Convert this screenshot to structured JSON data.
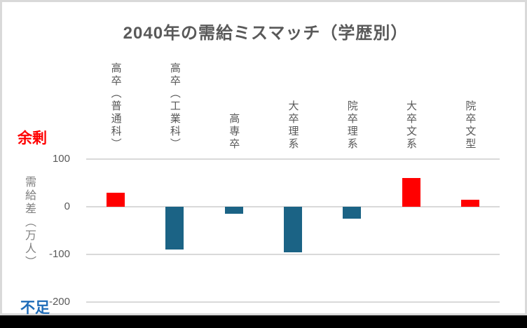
{
  "page": {
    "background_color": "#000000",
    "card_background": "#ffffff",
    "card_border_color": "#d9d9d9"
  },
  "chart_data": {
    "type": "bar",
    "title": "2040年の需給ミスマッチ（学歴別）",
    "categories": [
      "高卒（普通科）",
      "高卒（工業科）",
      "高専卒",
      "大卒理系",
      "院卒理系",
      "大卒文系",
      "院卒文型"
    ],
    "values": [
      30,
      -90,
      -15,
      -95,
      -25,
      60,
      15
    ],
    "ylabel": "需給差（万人）",
    "xlabel": "",
    "yticks": [
      100,
      0,
      -100,
      -200
    ],
    "ylim": [
      100,
      -200
    ],
    "grid": true,
    "legend_position": "none",
    "positive_color": "#ff0000",
    "negative_color": "#1b6385",
    "gridline_color": "#d9d9d9",
    "tick_text_color": "#595959",
    "category_text_color": "#595959",
    "title_color": "#595959",
    "ylabel_color": "#808080",
    "annotations": {
      "surplus": {
        "label": "余剰",
        "color": "#ff0000"
      },
      "shortage": {
        "label": "不足",
        "color": "#1f6cb8"
      }
    }
  }
}
